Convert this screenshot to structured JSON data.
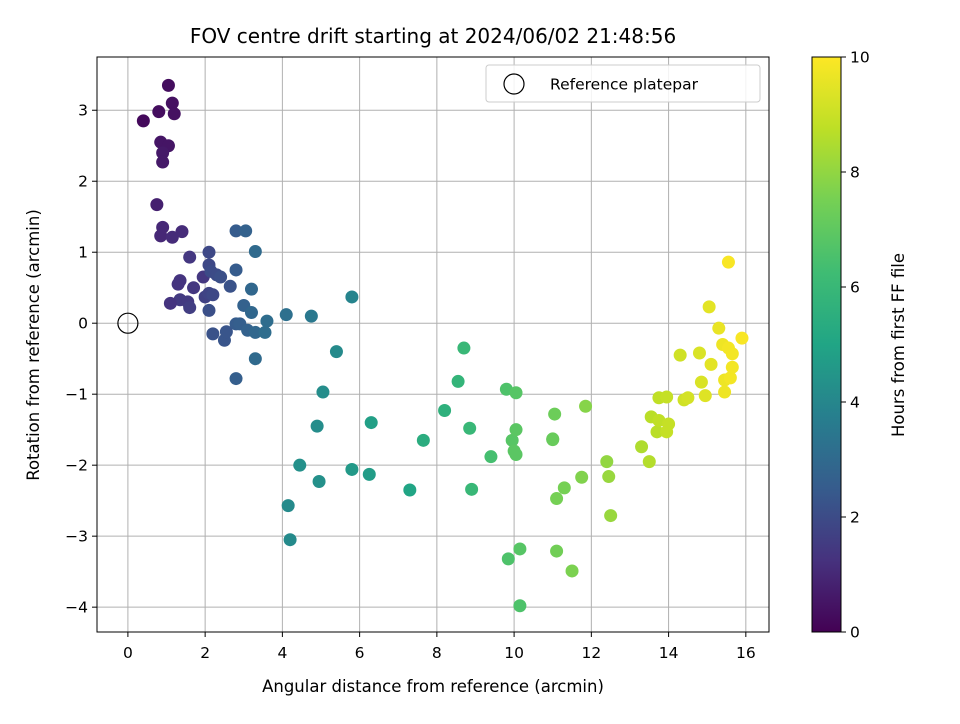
{
  "chart_data": {
    "type": "scatter",
    "title": "FOV centre drift starting at 2024/06/02 21:48:56",
    "xlabel": "Angular distance from reference (arcmin)",
    "ylabel": "Rotation from reference (arcmin)",
    "xlim": [
      -0.8,
      16.6
    ],
    "ylim": [
      -4.35,
      3.75
    ],
    "xticks": [
      0,
      2,
      4,
      6,
      8,
      10,
      12,
      14,
      16
    ],
    "yticks": [
      -4,
      -3,
      -2,
      -1,
      0,
      1,
      2,
      3
    ],
    "xtick_labels": [
      "0",
      "2",
      "4",
      "6",
      "8",
      "10",
      "12",
      "14",
      "16"
    ],
    "ytick_labels": [
      "−4",
      "−3",
      "−2",
      "−1",
      "0",
      "1",
      "2",
      "3"
    ],
    "grid": true,
    "colormap": "viridis",
    "colorbar": {
      "label": "Hours from first FF file",
      "range": [
        0,
        10
      ],
      "ticks": [
        0,
        2,
        4,
        6,
        8,
        10
      ],
      "tick_labels": [
        "0",
        "2",
        "4",
        "6",
        "8",
        "10"
      ]
    },
    "legend": {
      "position": "top-right",
      "entries": [
        "Reference platepar"
      ]
    },
    "reference": {
      "x": 0,
      "y": 0
    },
    "points": [
      [
        1.05,
        3.35,
        0.3
      ],
      [
        0.8,
        2.98,
        0.3
      ],
      [
        1.15,
        3.1,
        0.4
      ],
      [
        1.2,
        2.95,
        0.4
      ],
      [
        0.4,
        2.85,
        0.2
      ],
      [
        0.85,
        2.55,
        0.5
      ],
      [
        1.05,
        2.5,
        0.5
      ],
      [
        0.9,
        2.4,
        0.6
      ],
      [
        0.9,
        2.27,
        0.6
      ],
      [
        0.75,
        1.67,
        0.8
      ],
      [
        0.9,
        1.35,
        1.0
      ],
      [
        0.85,
        1.23,
        1.0
      ],
      [
        1.15,
        1.21,
        1.1
      ],
      [
        1.4,
        1.29,
        1.1
      ],
      [
        1.6,
        0.93,
        1.4
      ],
      [
        1.95,
        0.65,
        1.4
      ],
      [
        1.35,
        0.6,
        1.3
      ],
      [
        1.3,
        0.55,
        1.3
      ],
      [
        1.7,
        0.5,
        1.4
      ],
      [
        1.35,
        0.33,
        1.5
      ],
      [
        1.55,
        0.3,
        1.5
      ],
      [
        1.1,
        0.28,
        1.3
      ],
      [
        1.6,
        0.22,
        1.6
      ],
      [
        2.0,
        0.37,
        1.7
      ],
      [
        2.1,
        0.42,
        1.8
      ],
      [
        2.2,
        0.4,
        1.9
      ],
      [
        2.1,
        1.0,
        1.9
      ],
      [
        2.1,
        0.82,
        1.9
      ],
      [
        2.15,
        0.73,
        2.0
      ],
      [
        2.3,
        0.68,
        2.0
      ],
      [
        2.4,
        0.65,
        2.1
      ],
      [
        2.65,
        0.52,
        2.2
      ],
      [
        2.2,
        -0.15,
        2.2
      ],
      [
        2.5,
        -0.24,
        2.3
      ],
      [
        2.55,
        -0.12,
        2.3
      ],
      [
        2.1,
        0.18,
        2.1
      ],
      [
        2.8,
        1.3,
        2.5
      ],
      [
        3.05,
        1.3,
        2.7
      ],
      [
        2.8,
        0.75,
        2.5
      ],
      [
        2.8,
        -0.01,
        2.5
      ],
      [
        2.9,
        -0.01,
        2.6
      ],
      [
        3.0,
        0.25,
        2.7
      ],
      [
        3.1,
        -0.1,
        2.7
      ],
      [
        3.2,
        0.15,
        2.9
      ],
      [
        3.2,
        0.48,
        2.9
      ],
      [
        3.3,
        -0.13,
        2.9
      ],
      [
        3.3,
        1.01,
        3.0
      ],
      [
        2.8,
        -0.78,
        2.6
      ],
      [
        3.3,
        -0.5,
        3.0
      ],
      [
        3.6,
        0.03,
        3.1
      ],
      [
        3.55,
        -0.13,
        3.1
      ],
      [
        4.1,
        0.12,
        3.2
      ],
      [
        4.75,
        0.1,
        3.5
      ],
      [
        5.8,
        0.37,
        3.9
      ],
      [
        5.4,
        -0.4,
        4.1
      ],
      [
        5.05,
        -0.97,
        4.2
      ],
      [
        4.9,
        -1.45,
        4.2
      ],
      [
        4.45,
        -2.0,
        4.3
      ],
      [
        4.95,
        -2.23,
        4.3
      ],
      [
        4.15,
        -2.57,
        4.1
      ],
      [
        4.2,
        -3.05,
        4.1
      ],
      [
        5.8,
        -2.06,
        4.6
      ],
      [
        6.25,
        -2.13,
        4.7
      ],
      [
        6.3,
        -1.4,
        4.8
      ],
      [
        7.3,
        -2.35,
        5.0
      ],
      [
        7.65,
        -1.65,
        5.4
      ],
      [
        8.2,
        -1.23,
        5.6
      ],
      [
        8.55,
        -0.82,
        5.8
      ],
      [
        8.7,
        -0.35,
        6.0
      ],
      [
        8.85,
        -1.48,
        6.0
      ],
      [
        8.9,
        -2.34,
        6.0
      ],
      [
        9.4,
        -1.88,
        6.4
      ],
      [
        9.8,
        -0.93,
        6.6
      ],
      [
        10.05,
        -0.98,
        6.8
      ],
      [
        9.95,
        -1.65,
        6.8
      ],
      [
        10.05,
        -1.5,
        6.9
      ],
      [
        10.0,
        -1.8,
        6.9
      ],
      [
        10.05,
        -1.85,
        6.9
      ],
      [
        9.85,
        -3.32,
        6.6
      ],
      [
        10.15,
        -3.18,
        6.8
      ],
      [
        10.15,
        -3.98,
        6.6
      ],
      [
        11.05,
        -1.28,
        7.3
      ],
      [
        11.0,
        -1.63,
        7.2
      ],
      [
        11.0,
        -1.64,
        7.2
      ],
      [
        11.1,
        -3.21,
        7.4
      ],
      [
        11.1,
        -2.47,
        7.5
      ],
      [
        11.3,
        -2.32,
        7.5
      ],
      [
        11.5,
        -3.49,
        7.6
      ],
      [
        11.75,
        -2.17,
        7.7
      ],
      [
        11.85,
        -1.17,
        7.8
      ],
      [
        12.4,
        -1.95,
        8.0
      ],
      [
        12.45,
        -2.16,
        8.1
      ],
      [
        12.5,
        -2.71,
        8.1
      ],
      [
        13.3,
        -1.74,
        8.5
      ],
      [
        13.5,
        -1.95,
        8.6
      ],
      [
        13.55,
        -1.32,
        8.7
      ],
      [
        13.7,
        -1.53,
        8.7
      ],
      [
        13.75,
        -1.05,
        8.8
      ],
      [
        13.75,
        -1.37,
        8.8
      ],
      [
        13.95,
        -1.53,
        8.9
      ],
      [
        13.95,
        -1.04,
        8.9
      ],
      [
        14.0,
        -1.42,
        8.9
      ],
      [
        14.3,
        -0.45,
        9.1
      ],
      [
        14.4,
        -1.08,
        9.1
      ],
      [
        14.5,
        -1.05,
        9.2
      ],
      [
        14.8,
        -0.42,
        9.3
      ],
      [
        14.85,
        -0.83,
        9.3
      ],
      [
        14.95,
        -1.02,
        9.4
      ],
      [
        15.05,
        0.23,
        9.5
      ],
      [
        15.1,
        -0.58,
        9.5
      ],
      [
        15.3,
        -0.07,
        9.6
      ],
      [
        15.4,
        -0.3,
        9.7
      ],
      [
        15.45,
        -0.8,
        9.7
      ],
      [
        15.45,
        -0.97,
        9.7
      ],
      [
        15.55,
        -0.35,
        9.8
      ],
      [
        15.6,
        -0.77,
        9.8
      ],
      [
        15.65,
        -0.62,
        9.8
      ],
      [
        15.65,
        -0.43,
        9.8
      ],
      [
        15.55,
        0.86,
        9.9
      ],
      [
        15.9,
        -0.21,
        9.9
      ]
    ]
  }
}
